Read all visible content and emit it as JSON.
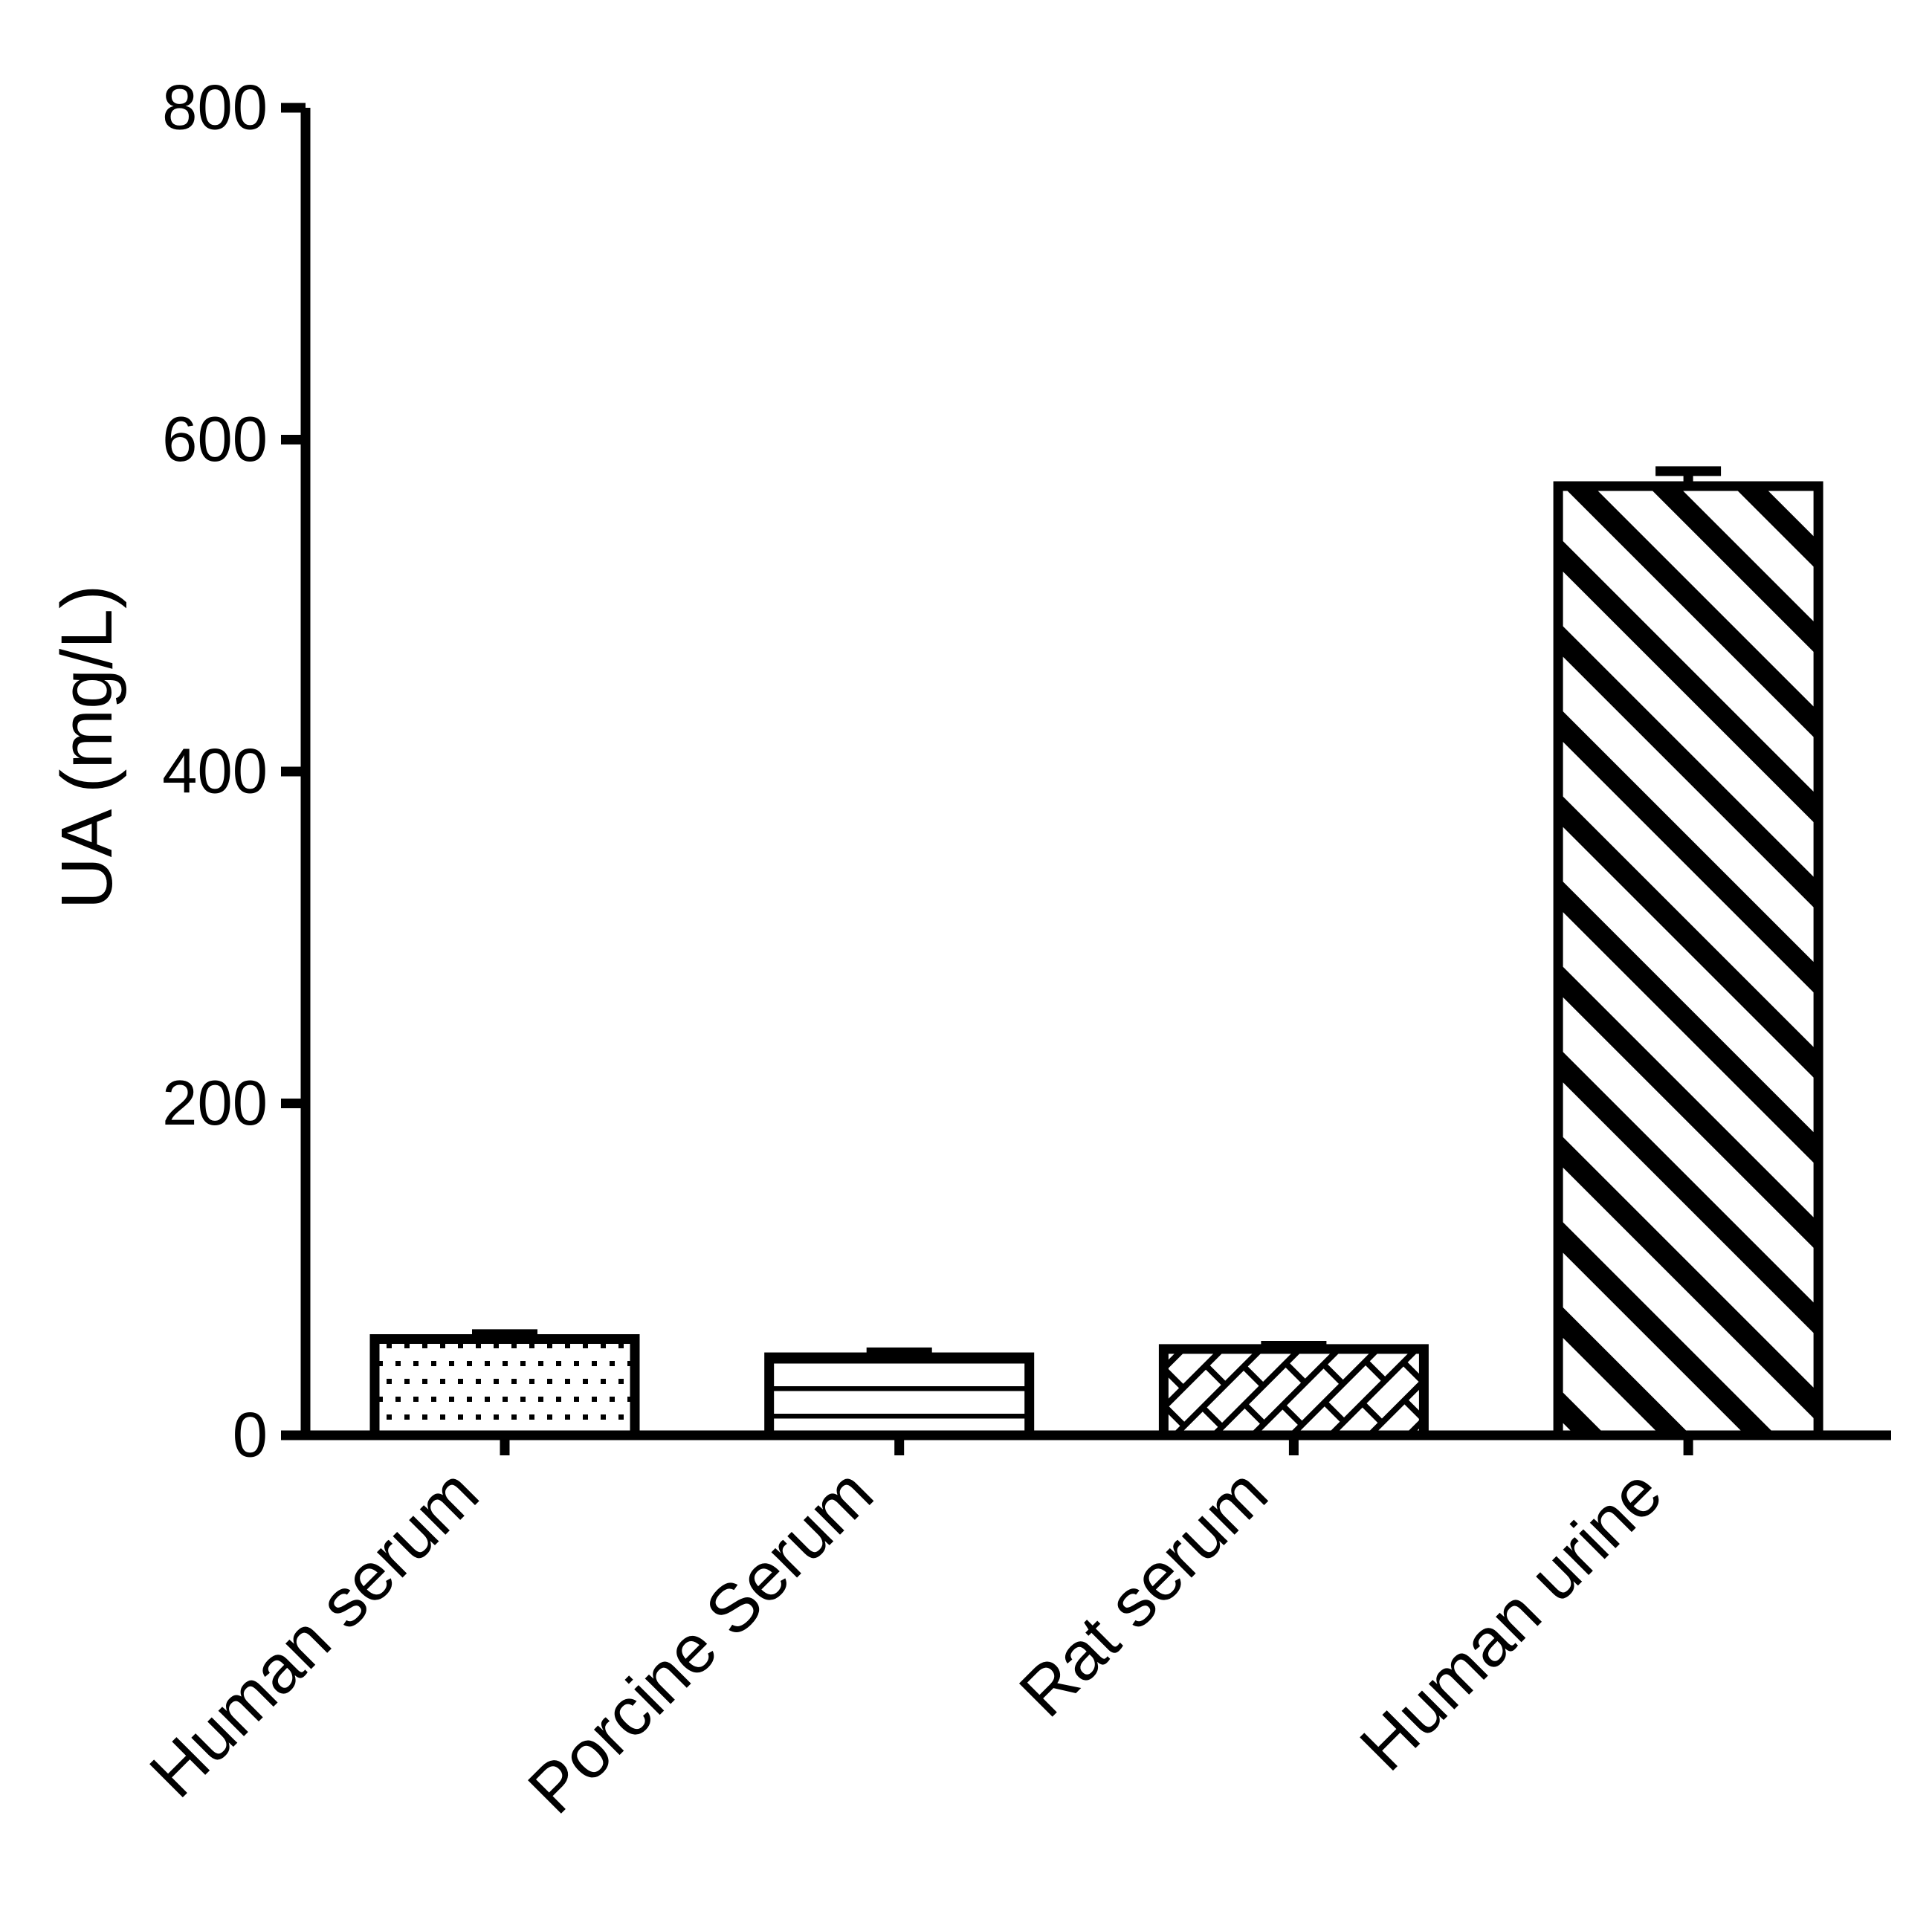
{
  "chart_data": {
    "type": "bar",
    "title": "",
    "categories": [
      "Human serum",
      "Porcine Serum",
      "Rat serum",
      "Human urine"
    ],
    "series": [
      {
        "name": "UA",
        "values": [
          58,
          47,
          52,
          572
        ],
        "errors_sd": [
          3,
          3,
          2,
          9
        ]
      }
    ],
    "bar_patterns": [
      "dots",
      "horizontal-lines",
      "diagonal-bricks",
      "diagonal-stripes"
    ],
    "xlabel": "",
    "ylabel": "UA (mg/L)",
    "ylim": [
      0,
      800
    ],
    "yticks": [
      0,
      200,
      400,
      600,
      800
    ],
    "grid": false,
    "legend": "none",
    "bar_fill_color": "#ffffff",
    "stroke_color": "#000000",
    "background_color": "#ffffff"
  }
}
